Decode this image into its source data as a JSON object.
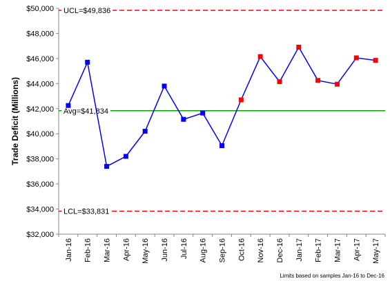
{
  "chart_data": {
    "type": "line",
    "title": "",
    "xlabel": "",
    "ylabel": "Trade Deficit (Millions)",
    "ylim": [
      32000,
      50000
    ],
    "y_ticks": [
      "$32,000",
      "$34,000",
      "$36,000",
      "$38,000",
      "$40,000",
      "$42,000",
      "$44,000",
      "$46,000",
      "$48,000",
      "$50,000"
    ],
    "y_tick_values": [
      32000,
      34000,
      36000,
      38000,
      40000,
      42000,
      44000,
      46000,
      48000,
      50000
    ],
    "categories": [
      "Jan-16",
      "Feb-16",
      "Mar-16",
      "Apr-16",
      "May-16",
      "Jun-16",
      "Jul-16",
      "Aug-16",
      "Sep-16",
      "Oct-16",
      "Nov-16",
      "Dec-16",
      "Jan-17",
      "Feb-17",
      "Mar-17",
      "Apr-17",
      "May-17"
    ],
    "values": [
      42250,
      45700,
      37400,
      38200,
      40200,
      43800,
      41150,
      41650,
      39050,
      42700,
      46150,
      44150,
      46900,
      44250,
      43950,
      46050,
      45850
    ],
    "point_colors": [
      "#0000ff",
      "#0000ff",
      "#0000ff",
      "#0000ff",
      "#0000ff",
      "#0000ff",
      "#0000ff",
      "#0000ff",
      "#0000ff",
      "#ff0000",
      "#ff0000",
      "#ff0000",
      "#ff0000",
      "#ff0000",
      "#ff0000",
      "#ff0000",
      "#ff0000"
    ],
    "line_color": "#0000ff",
    "limits": {
      "ucl": {
        "value": 49836,
        "label": "UCL=$49,836",
        "color": "#ff0000"
      },
      "avg": {
        "value": 41834,
        "label": "Avg=$41,834",
        "color": "#00a000"
      },
      "lcl": {
        "value": 33831,
        "label": "LCL=$33,831",
        "color": "#ff0000"
      }
    },
    "footnote": "Limits based on samples Jan-16 to Dec-16",
    "grid": false,
    "legend": "none"
  }
}
